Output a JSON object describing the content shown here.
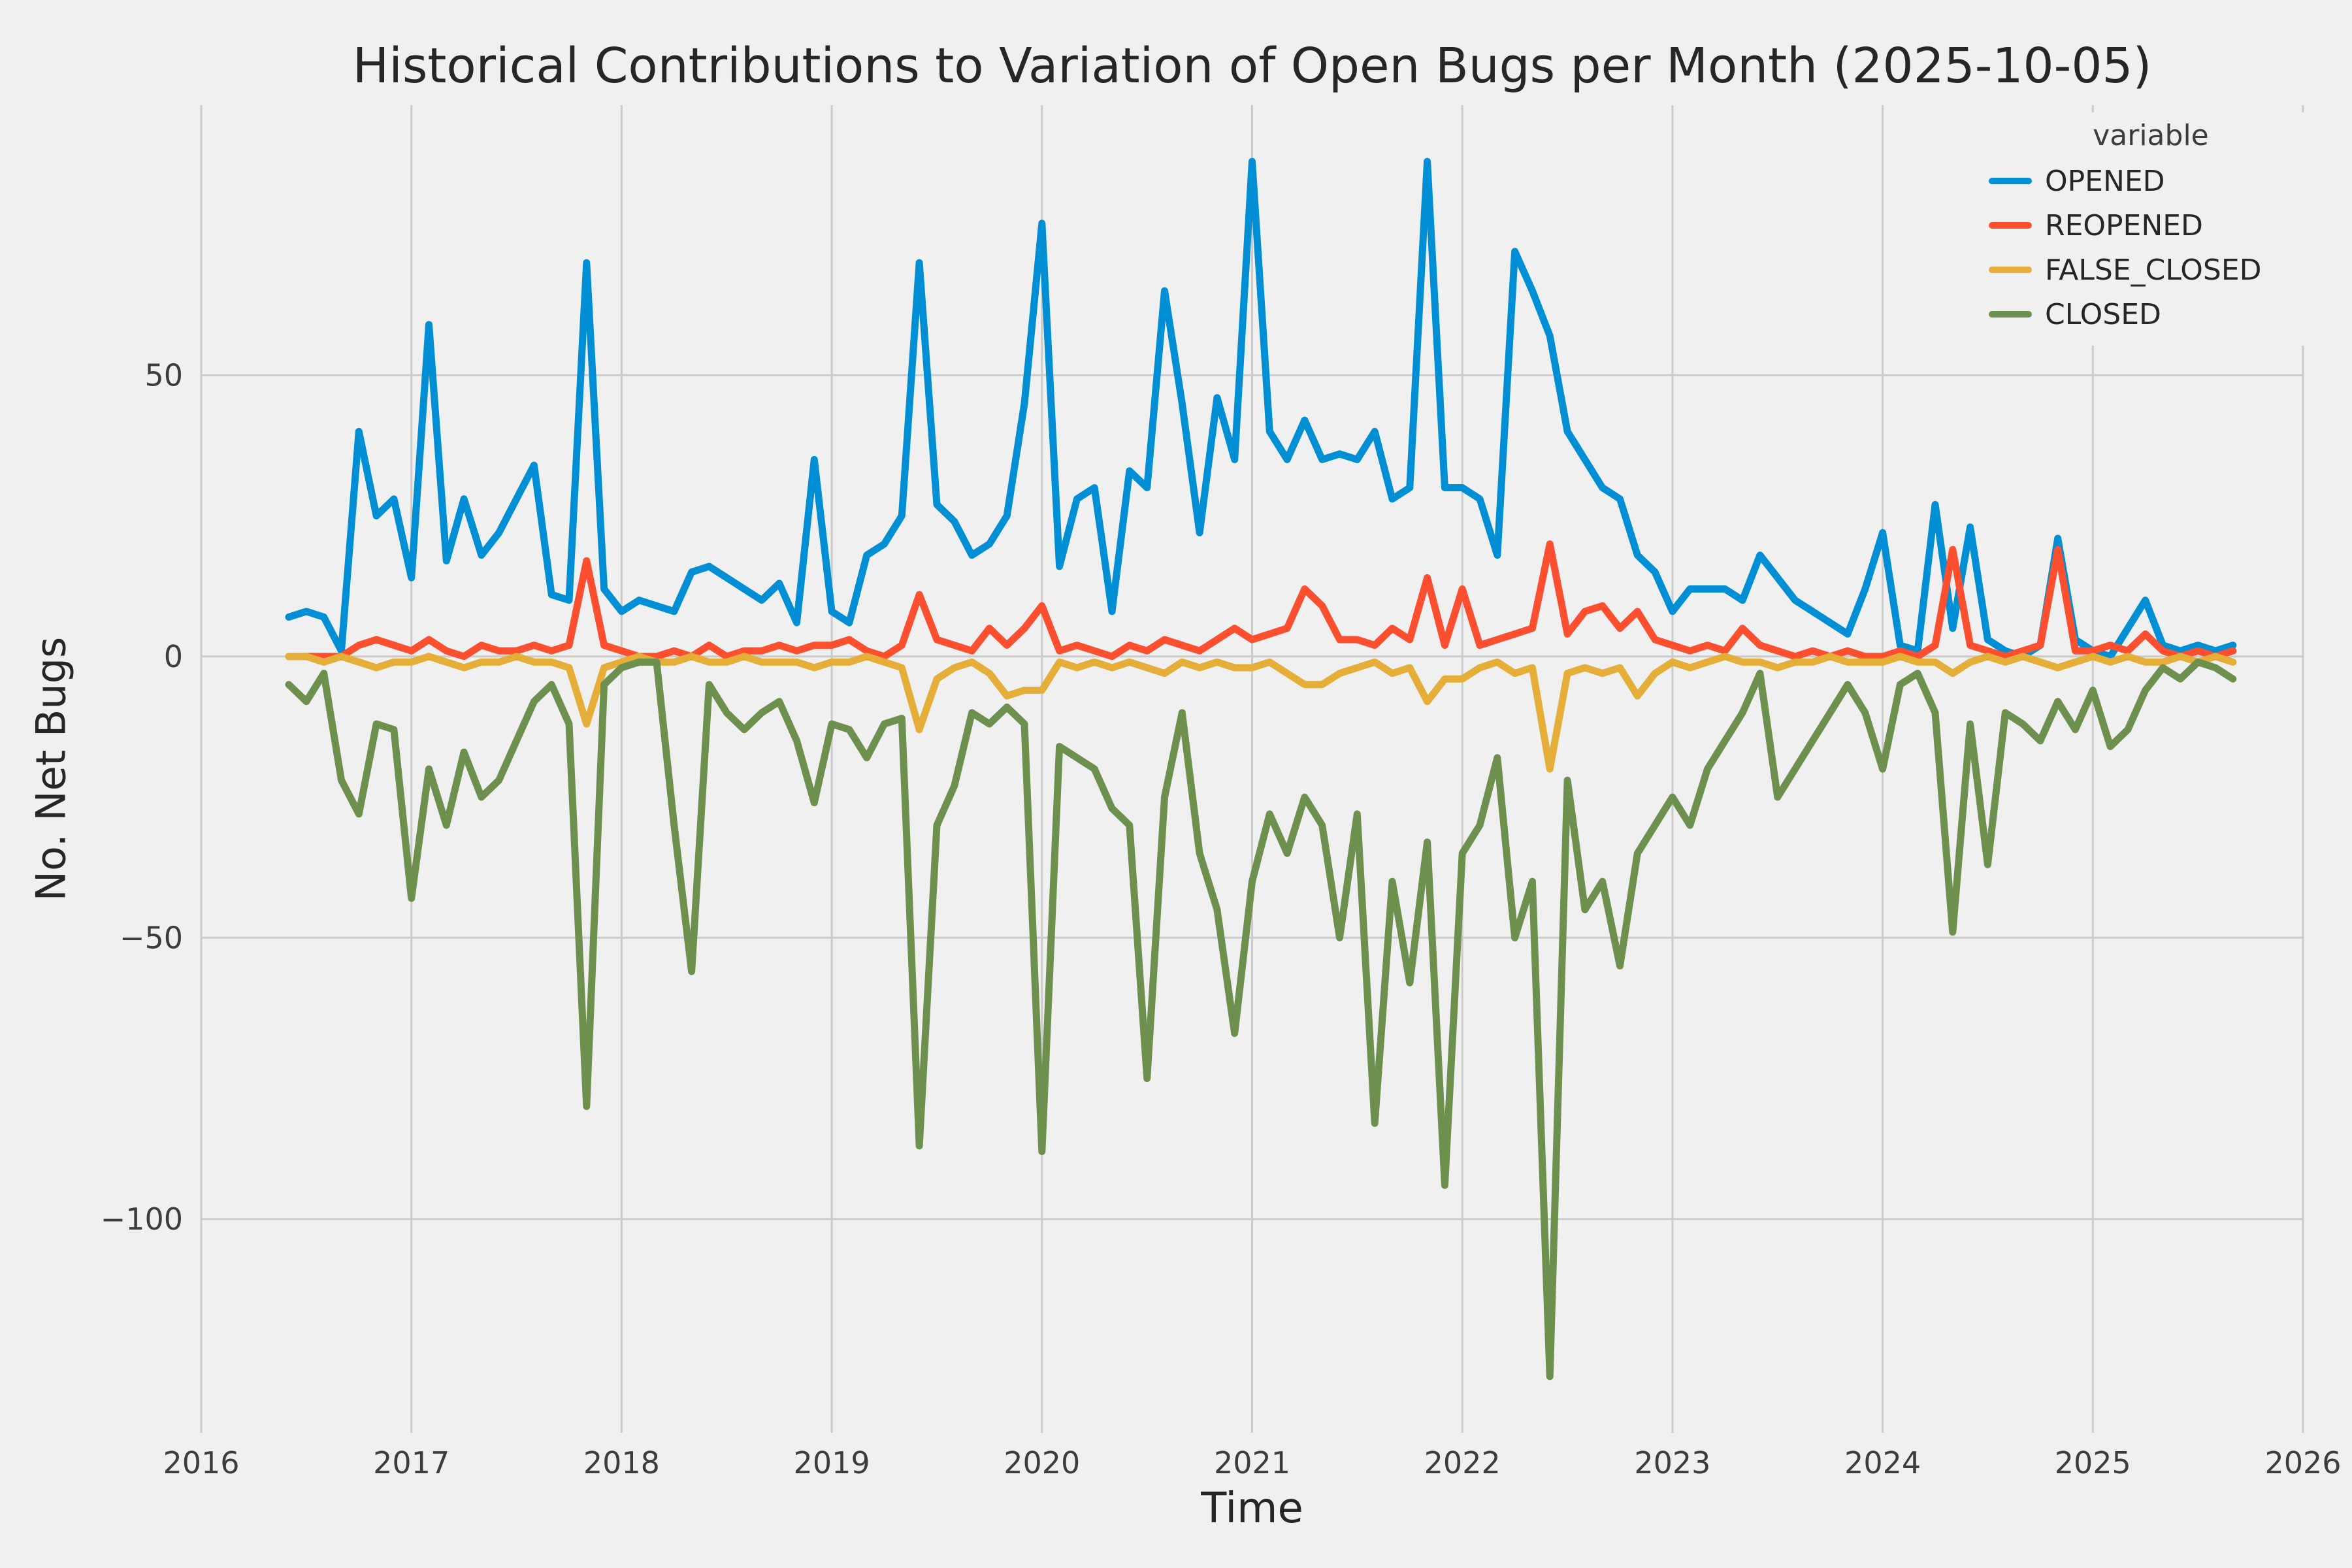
{
  "chart_data": {
    "type": "line",
    "title": "Historical Contributions to Variation of Open Bugs per Month (2025-10-05)",
    "xlabel": "Time",
    "ylabel": "No. Net Bugs",
    "legend_title": "variable",
    "legend_position": "upper right",
    "grid": true,
    "grid_color": "#CBCBCB",
    "background_color": "#F0F0F0",
    "text_color": "#3C3C3C",
    "xlim": [
      2016,
      2026
    ],
    "ylim": [
      -138,
      98
    ],
    "xticks": [
      2016,
      2017,
      2018,
      2019,
      2020,
      2021,
      2022,
      2023,
      2024,
      2025,
      2026
    ],
    "yticks": [
      50,
      0,
      -50,
      -100
    ],
    "x_start": {
      "year": 2016,
      "month": 6
    },
    "x_end": {
      "year": 2025,
      "month": 9
    },
    "x_freq": "monthly",
    "series": [
      {
        "name": "OPENED",
        "color": "#008FD5",
        "values": [
          7,
          8,
          7,
          1,
          40,
          25,
          28,
          14,
          59,
          17,
          28,
          18,
          22,
          28,
          34,
          11,
          10,
          70,
          12,
          8,
          10,
          9,
          8,
          15,
          16,
          14,
          12,
          10,
          13,
          6,
          35,
          8,
          6,
          18,
          20,
          25,
          70,
          27,
          24,
          18,
          20,
          25,
          45,
          77,
          16,
          28,
          30,
          8,
          33,
          30,
          65,
          45,
          22,
          46,
          35,
          88,
          40,
          35,
          42,
          35,
          36,
          35,
          40,
          28,
          30,
          88,
          30,
          30,
          28,
          18,
          72,
          65,
          57,
          40,
          35,
          30,
          28,
          18,
          15,
          8,
          12,
          12,
          12,
          10,
          18,
          14,
          10,
          8,
          6,
          4,
          12,
          22,
          2,
          1,
          27,
          5,
          23,
          3,
          1,
          0,
          2,
          21,
          3,
          1,
          0,
          5,
          10,
          2,
          1,
          2,
          1,
          2
        ]
      },
      {
        "name": "REOPENED",
        "color": "#FC4F30",
        "values": [
          0,
          0,
          0,
          0,
          2,
          3,
          2,
          1,
          3,
          1,
          0,
          2,
          1,
          1,
          2,
          1,
          2,
          17,
          2,
          1,
          0,
          0,
          1,
          0,
          2,
          0,
          1,
          1,
          2,
          1,
          2,
          2,
          3,
          1,
          0,
          2,
          11,
          3,
          2,
          1,
          5,
          2,
          5,
          9,
          1,
          2,
          1,
          0,
          2,
          1,
          3,
          2,
          1,
          3,
          5,
          3,
          4,
          5,
          12,
          9,
          3,
          3,
          2,
          5,
          3,
          14,
          2,
          12,
          2,
          3,
          4,
          5,
          20,
          4,
          8,
          9,
          5,
          8,
          3,
          2,
          1,
          2,
          1,
          5,
          2,
          1,
          0,
          1,
          0,
          1,
          0,
          0,
          1,
          0,
          2,
          19,
          2,
          1,
          0,
          1,
          2,
          19,
          1,
          1,
          2,
          1,
          4,
          1,
          0,
          1,
          0,
          1
        ]
      },
      {
        "name": "FALSE_CLOSED",
        "color": "#E5AE38",
        "values": [
          0,
          0,
          -1,
          0,
          -1,
          -2,
          -1,
          -1,
          0,
          -1,
          -2,
          -1,
          -1,
          0,
          -1,
          -1,
          -2,
          -12,
          -2,
          -1,
          0,
          -1,
          -1,
          0,
          -1,
          -1,
          0,
          -1,
          -1,
          -1,
          -2,
          -1,
          -1,
          0,
          -1,
          -2,
          -13,
          -4,
          -2,
          -1,
          -3,
          -7,
          -6,
          -6,
          -1,
          -2,
          -1,
          -2,
          -1,
          -2,
          -3,
          -1,
          -2,
          -1,
          -2,
          -2,
          -1,
          -3,
          -5,
          -5,
          -3,
          -2,
          -1,
          -3,
          -2,
          -8,
          -4,
          -4,
          -2,
          -1,
          -3,
          -2,
          -20,
          -3,
          -2,
          -3,
          -2,
          -7,
          -3,
          -1,
          -2,
          -1,
          0,
          -1,
          -1,
          -2,
          -1,
          -1,
          0,
          -1,
          -1,
          -1,
          0,
          -1,
          -1,
          -3,
          -1,
          0,
          -1,
          0,
          -1,
          -2,
          -1,
          0,
          -1,
          0,
          -1,
          -1,
          0,
          -1,
          0,
          -1
        ]
      },
      {
        "name": "CLOSED",
        "color": "#6D904F",
        "values": [
          -5,
          -8,
          -3,
          -22,
          -28,
          -12,
          -13,
          -43,
          -20,
          -30,
          -17,
          -25,
          -22,
          -15,
          -8,
          -5,
          -12,
          -80,
          -5,
          -2,
          -1,
          -1,
          -30,
          -56,
          -5,
          -10,
          -13,
          -10,
          -8,
          -15,
          -26,
          -12,
          -13,
          -18,
          -12,
          -11,
          -87,
          -30,
          -23,
          -10,
          -12,
          -9,
          -12,
          -88,
          -16,
          -18,
          -20,
          -27,
          -30,
          -75,
          -25,
          -10,
          -35,
          -45,
          -67,
          -40,
          -28,
          -35,
          -25,
          -30,
          -50,
          -28,
          -83,
          -40,
          -58,
          -33,
          -94,
          -35,
          -30,
          -18,
          -50,
          -40,
          -128,
          -22,
          -45,
          -40,
          -55,
          -35,
          -30,
          -25,
          -30,
          -20,
          -15,
          -10,
          -3,
          -25,
          -20,
          -15,
          -10,
          -5,
          -10,
          -20,
          -5,
          -3,
          -10,
          -49,
          -12,
          -37,
          -10,
          -12,
          -15,
          -8,
          -13,
          -6,
          -16,
          -13,
          -6,
          -2,
          -4,
          -1,
          -2,
          -4
        ]
      }
    ]
  }
}
